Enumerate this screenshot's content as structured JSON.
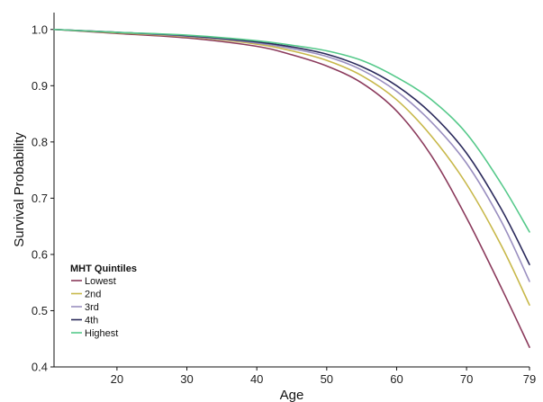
{
  "chart_data": {
    "type": "line",
    "xlabel": "Age",
    "ylabel": "Survival Probability",
    "xlim": [
      11,
      79
    ],
    "ylim": [
      0.4,
      1.03
    ],
    "xticks": [
      20,
      30,
      40,
      50,
      60,
      70,
      79
    ],
    "yticks": [
      0.4,
      0.5,
      0.6,
      0.7,
      0.8,
      0.9,
      1.0
    ],
    "ytick_labels": [
      "0.4",
      "0.5",
      "0.6",
      "0.7",
      "0.8",
      "0.9",
      "1.0"
    ],
    "grid": false,
    "legend": {
      "title": "MHT Quintiles",
      "placement": "bottom-left"
    },
    "x": [
      11,
      20,
      30,
      40,
      45,
      50,
      55,
      60,
      65,
      70,
      75,
      79
    ],
    "series": [
      {
        "name": "Lowest",
        "color": "#8b3a5c",
        "values": [
          1.0,
          0.993,
          0.985,
          0.97,
          0.955,
          0.935,
          0.905,
          0.855,
          0.775,
          0.665,
          0.54,
          0.435
        ]
      },
      {
        "name": "2nd",
        "color": "#c8b84a",
        "values": [
          1.0,
          0.994,
          0.987,
          0.974,
          0.962,
          0.945,
          0.918,
          0.875,
          0.81,
          0.725,
          0.615,
          0.51
        ]
      },
      {
        "name": "3rd",
        "color": "#9a8fc0",
        "values": [
          1.0,
          0.995,
          0.988,
          0.976,
          0.966,
          0.952,
          0.928,
          0.89,
          0.835,
          0.762,
          0.658,
          0.552
        ]
      },
      {
        "name": "4th",
        "color": "#2b2a5c",
        "values": [
          1.0,
          0.995,
          0.989,
          0.978,
          0.969,
          0.956,
          0.934,
          0.9,
          0.85,
          0.78,
          0.68,
          0.582
        ]
      },
      {
        "name": "Highest",
        "color": "#55c98a",
        "values": [
          1.0,
          0.995,
          0.99,
          0.98,
          0.972,
          0.962,
          0.945,
          0.915,
          0.875,
          0.815,
          0.725,
          0.64
        ]
      }
    ]
  }
}
